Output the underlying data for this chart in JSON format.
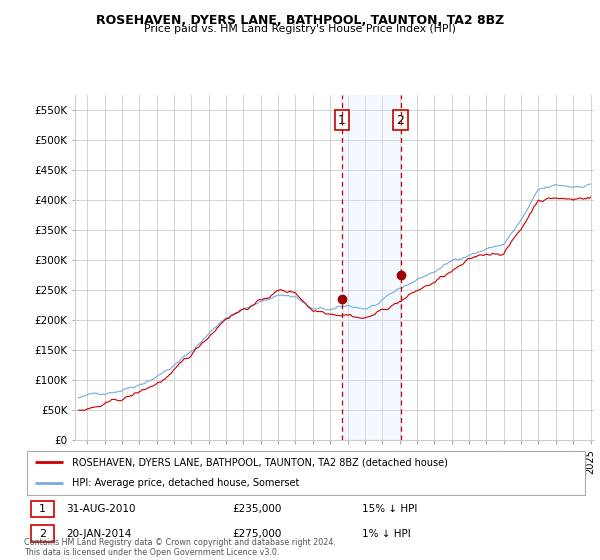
{
  "title": "ROSEHAVEN, DYERS LANE, BATHPOOL, TAUNTON, TA2 8BZ",
  "subtitle": "Price paid vs. HM Land Registry's House Price Index (HPI)",
  "ylabel_ticks": [
    "£0",
    "£50K",
    "£100K",
    "£150K",
    "£200K",
    "£250K",
    "£300K",
    "£350K",
    "£400K",
    "£450K",
    "£500K",
    "£550K"
  ],
  "ylim": [
    0,
    575000
  ],
  "xlim_start": 1995.5,
  "xlim_end": 2025.2,
  "sale1_date": 2010.664,
  "sale1_price": 235000,
  "sale2_date": 2014.055,
  "sale2_price": 275000,
  "red_line_color": "#cc0000",
  "blue_line_color": "#7aaadd",
  "shade_color": "#ddeeff",
  "marker_color": "#990000",
  "legend_line1": "ROSEHAVEN, DYERS LANE, BATHPOOL, TAUNTON, TA2 8BZ (detached house)",
  "legend_line2": "HPI: Average price, detached house, Somerset",
  "footer": "Contains HM Land Registry data © Crown copyright and database right 2024.\nThis data is licensed under the Open Government Licence v3.0.",
  "grid_color": "#cccccc",
  "label1_box_text": "1",
  "label2_box_text": "2",
  "annot1_date": "31-AUG-2010",
  "annot1_price": "£235,000",
  "annot1_hpi": "15% ↓ HPI",
  "annot2_date": "20-JAN-2014",
  "annot2_price": "£275,000",
  "annot2_hpi": "1% ↓ HPI"
}
